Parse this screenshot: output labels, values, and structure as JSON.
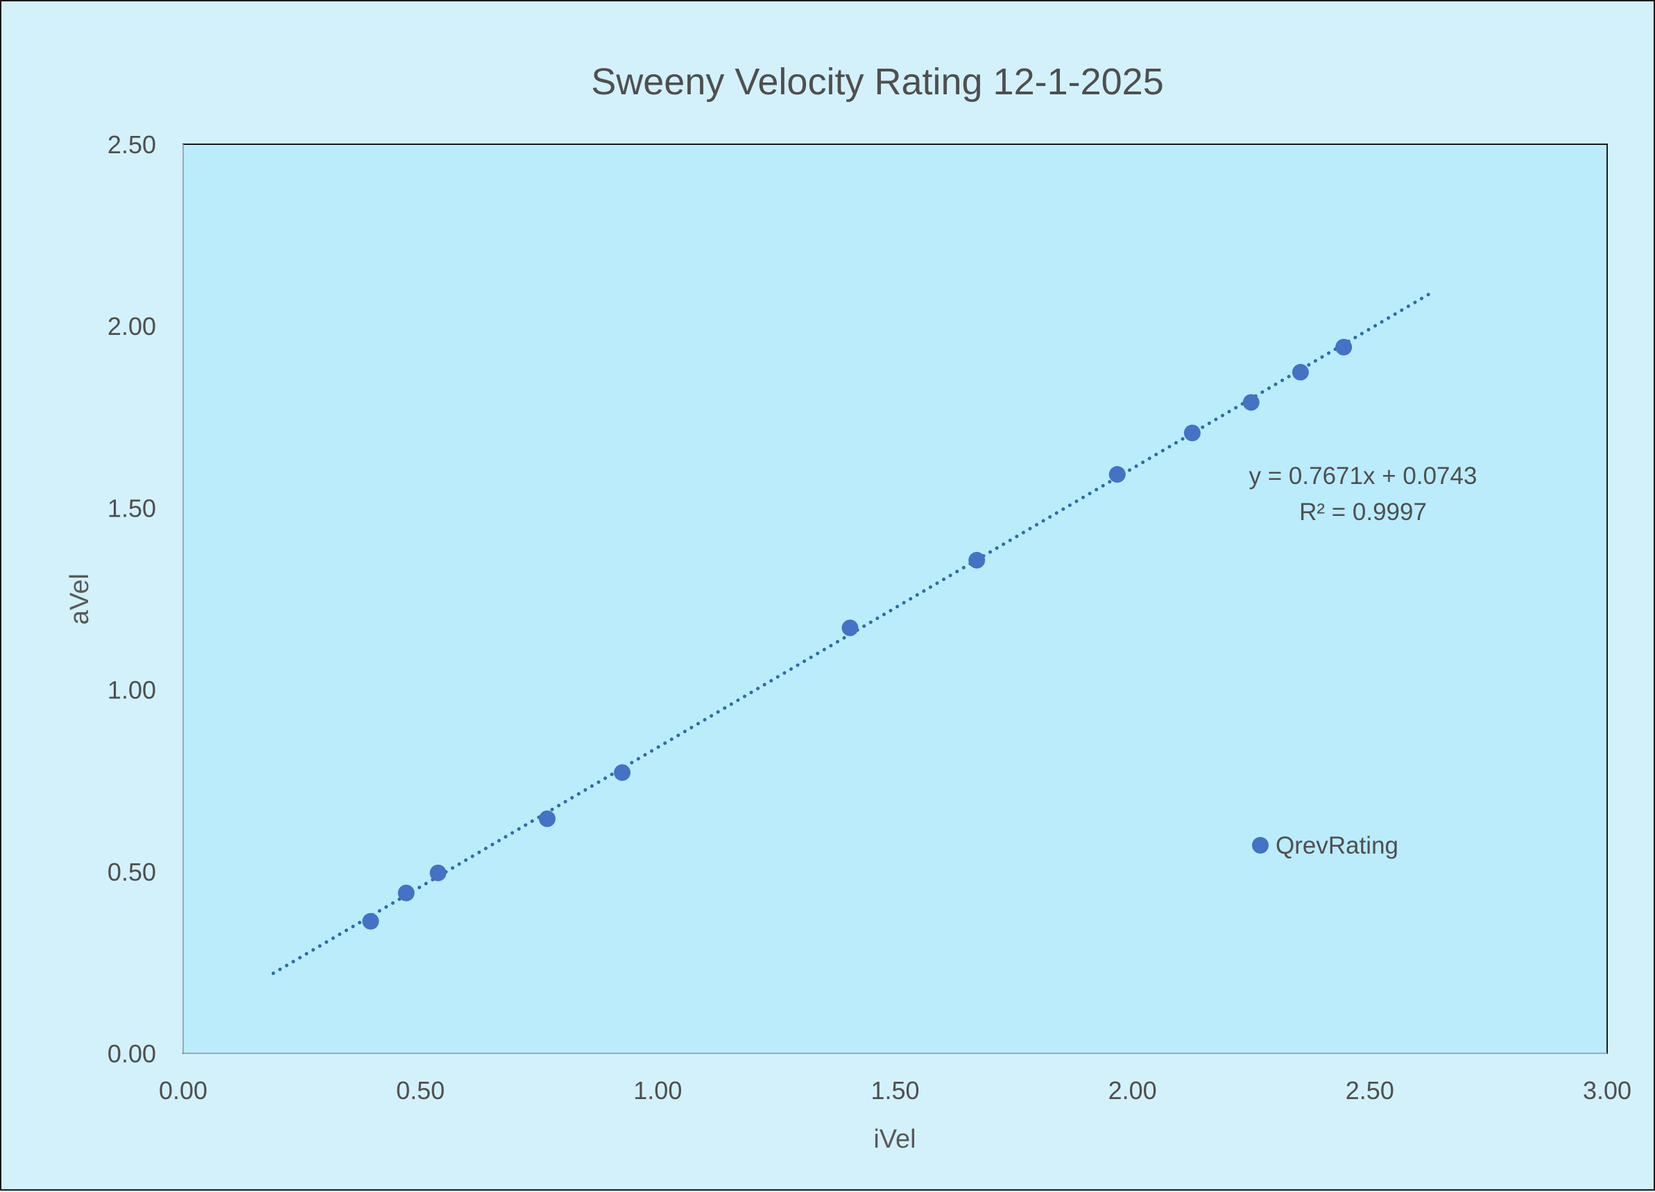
{
  "chart_data": {
    "type": "scatter",
    "title": "Sweeny Velocity Rating 12-1-2025",
    "xlabel": "iVel",
    "ylabel": "aVel",
    "xlim": [
      0,
      3
    ],
    "ylim": [
      0,
      2.5
    ],
    "x_ticks": [
      "0.00",
      "0.50",
      "1.00",
      "1.50",
      "2.00",
      "2.50",
      "3.00"
    ],
    "y_ticks": [
      "0.00",
      "0.50",
      "1.00",
      "1.50",
      "2.00",
      "2.50"
    ],
    "series": [
      {
        "name": "QrevRating",
        "color": "#4472c4",
        "x": [
          0.395,
          0.47,
          0.537,
          0.767,
          0.925,
          1.405,
          1.672,
          1.968,
          2.126,
          2.25,
          2.354,
          2.445
        ],
        "y": [
          0.363,
          0.441,
          0.496,
          0.645,
          0.772,
          1.17,
          1.356,
          1.592,
          1.706,
          1.79,
          1.873,
          1.942
        ]
      }
    ],
    "trendline": {
      "type": "linear",
      "style": "dotted",
      "color": "#2e6da4",
      "x_range": [
        0.19,
        2.63
      ],
      "slope": 0.7671,
      "intercept": 0.0743,
      "equation": "y = 0.7671x + 0.0743",
      "r_squared": "R² = 0.9997"
    },
    "legend": {
      "placement": "inside-bottom-right",
      "label": "QrevRating"
    },
    "grid": false,
    "plot_background": "#bbecfc",
    "page_background": "#d3f1fb"
  }
}
